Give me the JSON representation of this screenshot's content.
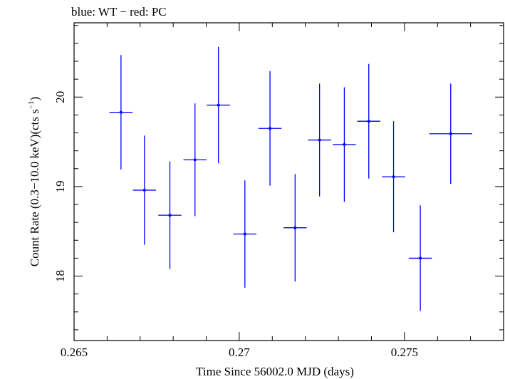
{
  "chart_data": {
    "type": "scatter",
    "title": "blue: WT − red: PC",
    "xlabel": "Time Since 56002.0 MJD (days)",
    "ylabel_main": "Count Rate (0.3−10.0 keV)(cts s",
    "ylabel_sup": "−1",
    "ylabel_close": ")",
    "xlim": [
      0.265,
      0.278
    ],
    "ylim": [
      17.28,
      20.83
    ],
    "xticks": [
      0.265,
      0.27,
      0.275
    ],
    "xtick_labels": [
      "0.265",
      "0.27",
      "0.275"
    ],
    "yticks": [
      18,
      19,
      20
    ],
    "ytick_labels": [
      "18",
      "19",
      "20"
    ],
    "series": [
      {
        "color": "#0000ff",
        "points": [
          {
            "x": 0.26642,
            "xerr": 0.00035,
            "y": 19.83,
            "yerr": 0.64
          },
          {
            "x": 0.26713,
            "xerr": 0.00035,
            "y": 18.96,
            "yerr": 0.61
          },
          {
            "x": 0.2679,
            "xerr": 0.00035,
            "y": 18.68,
            "yerr": 0.6
          },
          {
            "x": 0.26866,
            "xerr": 0.00035,
            "y": 19.3,
            "yerr": 0.63
          },
          {
            "x": 0.26937,
            "xerr": 0.00035,
            "y": 19.91,
            "yerr": 0.65
          },
          {
            "x": 0.27017,
            "xerr": 0.00035,
            "y": 18.47,
            "yerr": 0.6
          },
          {
            "x": 0.27093,
            "xerr": 0.00035,
            "y": 19.65,
            "yerr": 0.64
          },
          {
            "x": 0.27169,
            "xerr": 0.00035,
            "y": 18.54,
            "yerr": 0.6
          },
          {
            "x": 0.27243,
            "xerr": 0.00035,
            "y": 19.52,
            "yerr": 0.63
          },
          {
            "x": 0.27318,
            "xerr": 0.00035,
            "y": 19.47,
            "yerr": 0.64
          },
          {
            "x": 0.27392,
            "xerr": 0.00035,
            "y": 19.73,
            "yerr": 0.64
          },
          {
            "x": 0.27467,
            "xerr": 0.00035,
            "y": 19.11,
            "yerr": 0.62
          },
          {
            "x": 0.27548,
            "xerr": 0.00035,
            "y": 18.2,
            "yerr": 0.59
          },
          {
            "x": 0.2764,
            "xerr": 0.00065,
            "y": 19.59,
            "yerr": 0.56
          }
        ]
      }
    ]
  }
}
